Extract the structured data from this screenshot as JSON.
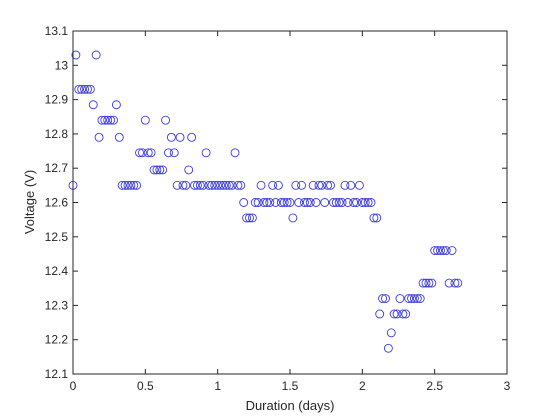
{
  "chart_data": {
    "type": "scatter",
    "xlabel": "Duration (days)",
    "ylabel": "Voltage (V)",
    "xlim": [
      0,
      3
    ],
    "ylim": [
      12.1,
      13.1
    ],
    "xticks": [
      "0",
      "0.5",
      "1",
      "1.5",
      "2",
      "2.5",
      "3"
    ],
    "yticks": [
      "12.1",
      "12.2",
      "12.3",
      "12.4",
      "12.5",
      "12.6",
      "12.7",
      "12.8",
      "12.9",
      "13",
      "13.1"
    ],
    "grid": false,
    "marker": "open-circle",
    "marker_color": "#3b3bdb",
    "series": [
      {
        "points": [
          [
            0.0,
            12.65
          ],
          [
            0.02,
            13.03
          ],
          [
            0.04,
            12.93
          ],
          [
            0.06,
            12.93
          ],
          [
            0.08,
            12.93
          ],
          [
            0.1,
            12.93
          ],
          [
            0.12,
            12.93
          ],
          [
            0.14,
            12.885
          ],
          [
            0.16,
            13.03
          ],
          [
            0.18,
            12.79
          ],
          [
            0.2,
            12.84
          ],
          [
            0.22,
            12.84
          ],
          [
            0.24,
            12.84
          ],
          [
            0.26,
            12.84
          ],
          [
            0.28,
            12.84
          ],
          [
            0.3,
            12.885
          ],
          [
            0.32,
            12.79
          ],
          [
            0.34,
            12.65
          ],
          [
            0.36,
            12.65
          ],
          [
            0.38,
            12.65
          ],
          [
            0.4,
            12.65
          ],
          [
            0.42,
            12.65
          ],
          [
            0.44,
            12.65
          ],
          [
            0.46,
            12.745
          ],
          [
            0.48,
            12.745
          ],
          [
            0.5,
            12.84
          ],
          [
            0.52,
            12.745
          ],
          [
            0.54,
            12.745
          ],
          [
            0.56,
            12.695
          ],
          [
            0.58,
            12.695
          ],
          [
            0.6,
            12.695
          ],
          [
            0.62,
            12.695
          ],
          [
            0.64,
            12.84
          ],
          [
            0.66,
            12.745
          ],
          [
            0.68,
            12.79
          ],
          [
            0.7,
            12.745
          ],
          [
            0.72,
            12.65
          ],
          [
            0.74,
            12.79
          ],
          [
            0.76,
            12.65
          ],
          [
            0.78,
            12.65
          ],
          [
            0.8,
            12.695
          ],
          [
            0.82,
            12.79
          ],
          [
            0.84,
            12.65
          ],
          [
            0.86,
            12.65
          ],
          [
            0.88,
            12.65
          ],
          [
            0.9,
            12.65
          ],
          [
            0.92,
            12.745
          ],
          [
            0.94,
            12.65
          ],
          [
            0.96,
            12.65
          ],
          [
            0.98,
            12.65
          ],
          [
            1.0,
            12.65
          ],
          [
            1.02,
            12.65
          ],
          [
            1.04,
            12.65
          ],
          [
            1.06,
            12.65
          ],
          [
            1.08,
            12.65
          ],
          [
            1.1,
            12.65
          ],
          [
            1.12,
            12.745
          ],
          [
            1.14,
            12.65
          ],
          [
            1.16,
            12.65
          ],
          [
            1.18,
            12.6
          ],
          [
            1.2,
            12.555
          ],
          [
            1.22,
            12.555
          ],
          [
            1.24,
            12.555
          ],
          [
            1.26,
            12.6
          ],
          [
            1.28,
            12.6
          ],
          [
            1.3,
            12.65
          ],
          [
            1.32,
            12.6
          ],
          [
            1.34,
            12.6
          ],
          [
            1.36,
            12.6
          ],
          [
            1.38,
            12.65
          ],
          [
            1.4,
            12.6
          ],
          [
            1.42,
            12.65
          ],
          [
            1.44,
            12.6
          ],
          [
            1.46,
            12.6
          ],
          [
            1.48,
            12.6
          ],
          [
            1.5,
            12.6
          ],
          [
            1.52,
            12.555
          ],
          [
            1.54,
            12.65
          ],
          [
            1.56,
            12.6
          ],
          [
            1.58,
            12.65
          ],
          [
            1.6,
            12.6
          ],
          [
            1.62,
            12.6
          ],
          [
            1.64,
            12.6
          ],
          [
            1.66,
            12.65
          ],
          [
            1.68,
            12.6
          ],
          [
            1.7,
            12.65
          ],
          [
            1.72,
            12.65
          ],
          [
            1.74,
            12.6
          ],
          [
            1.76,
            12.65
          ],
          [
            1.78,
            12.65
          ],
          [
            1.8,
            12.6
          ],
          [
            1.82,
            12.6
          ],
          [
            1.84,
            12.6
          ],
          [
            1.86,
            12.6
          ],
          [
            1.88,
            12.65
          ],
          [
            1.9,
            12.6
          ],
          [
            1.92,
            12.65
          ],
          [
            1.94,
            12.6
          ],
          [
            1.96,
            12.6
          ],
          [
            1.98,
            12.65
          ],
          [
            2.0,
            12.6
          ],
          [
            2.02,
            12.6
          ],
          [
            2.04,
            12.6
          ],
          [
            2.06,
            12.6
          ],
          [
            2.08,
            12.555
          ],
          [
            2.1,
            12.555
          ],
          [
            2.12,
            12.275
          ],
          [
            2.14,
            12.32
          ],
          [
            2.16,
            12.32
          ],
          [
            2.18,
            12.175
          ],
          [
            2.2,
            12.22
          ],
          [
            2.22,
            12.275
          ],
          [
            2.24,
            12.275
          ],
          [
            2.26,
            12.32
          ],
          [
            2.28,
            12.275
          ],
          [
            2.3,
            12.275
          ],
          [
            2.32,
            12.32
          ],
          [
            2.34,
            12.32
          ],
          [
            2.36,
            12.32
          ],
          [
            2.38,
            12.32
          ],
          [
            2.4,
            12.32
          ],
          [
            2.42,
            12.365
          ],
          [
            2.44,
            12.365
          ],
          [
            2.46,
            12.365
          ],
          [
            2.48,
            12.365
          ],
          [
            2.5,
            12.46
          ],
          [
            2.52,
            12.46
          ],
          [
            2.54,
            12.46
          ],
          [
            2.56,
            12.46
          ],
          [
            2.58,
            12.46
          ],
          [
            2.6,
            12.365
          ],
          [
            2.62,
            12.46
          ],
          [
            2.64,
            12.365
          ],
          [
            2.66,
            12.365
          ]
        ]
      }
    ]
  }
}
